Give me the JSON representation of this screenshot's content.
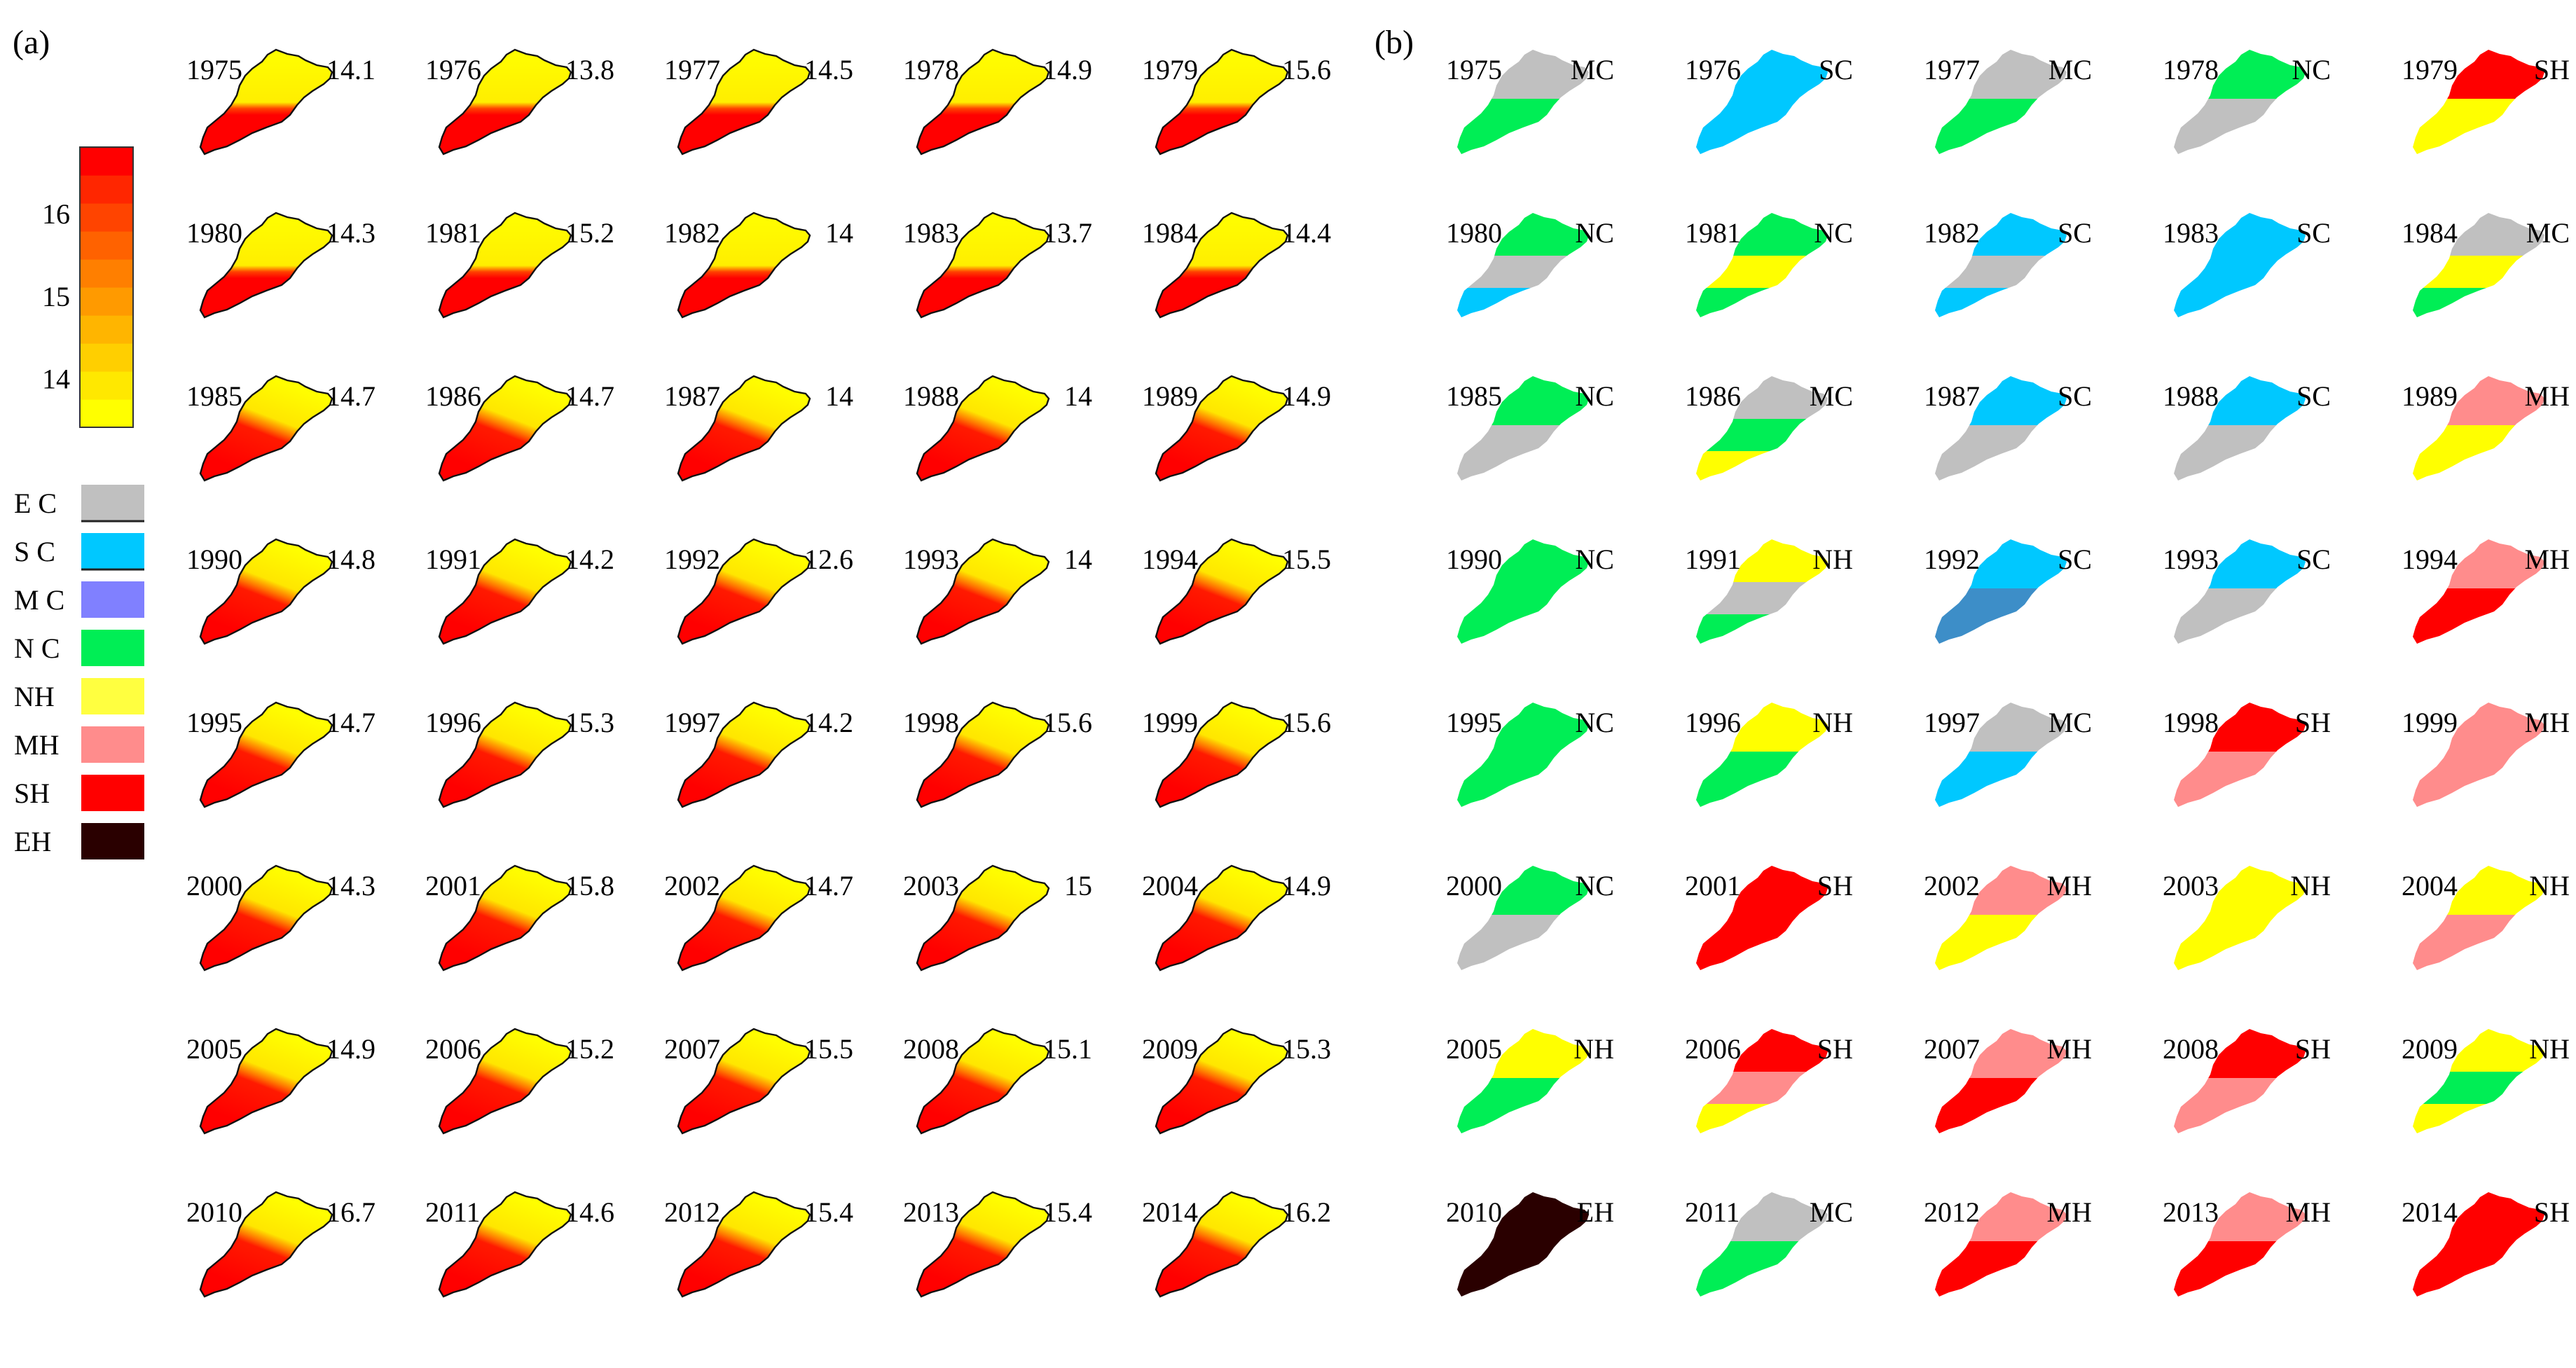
{
  "panels": {
    "a": {
      "label": "(a)"
    },
    "b": {
      "label": "(b)"
    }
  },
  "colorbar": {
    "tick_labels": [
      "16",
      "15",
      "14"
    ],
    "tick_values": [
      16,
      15,
      14
    ],
    "range": [
      13.4,
      16.8
    ],
    "colors": [
      "#ffff00",
      "#ffe800",
      "#ffcf00",
      "#ffb500",
      "#ff9a00",
      "#ff7f00",
      "#ff6200",
      "#ff4400",
      "#ff2600",
      "#ff0000"
    ]
  },
  "legend": [
    {
      "code": "EC",
      "label": "E C",
      "color": "#c0c0c0"
    },
    {
      "code": "SC",
      "label": "S C",
      "color": "#00c8ff"
    },
    {
      "code": "MC",
      "label": "M C",
      "color": "#8080ff"
    },
    {
      "code": "NC",
      "label": "N C",
      "color": "#00ee55"
    },
    {
      "code": "NH",
      "label": "NH",
      "color": "#ffff40"
    },
    {
      "code": "MH",
      "label": "MH",
      "color": "#ff8c8c"
    },
    {
      "code": "SH",
      "label": "SH",
      "color": "#ff0000"
    },
    {
      "code": "EH",
      "label": "EH",
      "color": "#2a0000"
    }
  ],
  "class_colors": {
    "EC": "#c0c0c0",
    "SC": "#00c8ff",
    "SCd": "#3d8ec8",
    "MC": "#8080ff",
    "NC": "#00ee55",
    "NH": "#ffff00",
    "MH": "#ff8c8c",
    "SH": "#ff0000",
    "EH": "#2a0000"
  },
  "panel_a_years": [
    {
      "year": "1975",
      "value": "14.1",
      "split": 0.54
    },
    {
      "year": "1976",
      "value": "13.8",
      "split": 0.54
    },
    {
      "year": "1977",
      "value": "14.5",
      "split": 0.54
    },
    {
      "year": "1978",
      "value": "14.9",
      "split": 0.54
    },
    {
      "year": "1979",
      "value": "15.6",
      "split": 0.54
    },
    {
      "year": "1980",
      "value": "14.3",
      "split": 0.58
    },
    {
      "year": "1981",
      "value": "15.2",
      "split": 0.58
    },
    {
      "year": "1982",
      "value": "14",
      "split": 0.58
    },
    {
      "year": "1983",
      "value": "13.7",
      "split": 0.58
    },
    {
      "year": "1984",
      "value": "14.4",
      "split": 0.58
    },
    {
      "year": "1985",
      "value": "14.7",
      "split": 0.45
    },
    {
      "year": "1986",
      "value": "14.7",
      "split": 0.45
    },
    {
      "year": "1987",
      "value": "14",
      "split": 0.45
    },
    {
      "year": "1988",
      "value": "14",
      "split": 0.45
    },
    {
      "year": "1989",
      "value": "14.9",
      "split": 0.45
    },
    {
      "year": "1990",
      "value": "14.8",
      "split": 0.45
    },
    {
      "year": "1991",
      "value": "14.2",
      "split": 0.45
    },
    {
      "year": "1992",
      "value": "12.6",
      "split": 0.45
    },
    {
      "year": "1993",
      "value": "14",
      "split": 0.45
    },
    {
      "year": "1994",
      "value": "15.5",
      "split": 0.45
    },
    {
      "year": "1995",
      "value": "14.7",
      "split": 0.45
    },
    {
      "year": "1996",
      "value": "15.3",
      "split": 0.45
    },
    {
      "year": "1997",
      "value": "14.2",
      "split": 0.45
    },
    {
      "year": "1998",
      "value": "15.6",
      "split": 0.45
    },
    {
      "year": "1999",
      "value": "15.6",
      "split": 0.45
    },
    {
      "year": "2000",
      "value": "14.3",
      "split": 0.45
    },
    {
      "year": "2001",
      "value": "15.8",
      "split": 0.45
    },
    {
      "year": "2002",
      "value": "14.7",
      "split": 0.45
    },
    {
      "year": "2003",
      "value": "15",
      "split": 0.45
    },
    {
      "year": "2004",
      "value": "14.9",
      "split": 0.45
    },
    {
      "year": "2005",
      "value": "14.9",
      "split": 0.45
    },
    {
      "year": "2006",
      "value": "15.2",
      "split": 0.45
    },
    {
      "year": "2007",
      "value": "15.5",
      "split": 0.45
    },
    {
      "year": "2008",
      "value": "15.1",
      "split": 0.45
    },
    {
      "year": "2009",
      "value": "15.3",
      "split": 0.45
    },
    {
      "year": "2010",
      "value": "16.7",
      "split": 0.45
    },
    {
      "year": "2011",
      "value": "14.6",
      "split": 0.45
    },
    {
      "year": "2012",
      "value": "15.4",
      "split": 0.45
    },
    {
      "year": "2013",
      "value": "15.4",
      "split": 0.45
    },
    {
      "year": "2014",
      "value": "16.2",
      "split": 0.45
    }
  ],
  "panel_b_years": [
    {
      "year": "1975",
      "cls": "MC",
      "zones": [
        "EC",
        "NC"
      ]
    },
    {
      "year": "1976",
      "cls": "SC",
      "zones": [
        "SC"
      ]
    },
    {
      "year": "1977",
      "cls": "MC",
      "zones": [
        "EC",
        "NC"
      ]
    },
    {
      "year": "1978",
      "cls": "NC",
      "zones": [
        "NC",
        "EC"
      ]
    },
    {
      "year": "1979",
      "cls": "SH",
      "zones": [
        "SH",
        "NH"
      ]
    },
    {
      "year": "1980",
      "cls": "NC",
      "zones": [
        "NC",
        "EC",
        "SC"
      ]
    },
    {
      "year": "1981",
      "cls": "NC",
      "zones": [
        "NC",
        "NH",
        "NC"
      ]
    },
    {
      "year": "1982",
      "cls": "SC",
      "zones": [
        "SC",
        "EC",
        "SC"
      ]
    },
    {
      "year": "1983",
      "cls": "SC",
      "zones": [
        "SC"
      ]
    },
    {
      "year": "1984",
      "cls": "MC",
      "zones": [
        "EC",
        "NH",
        "NC"
      ]
    },
    {
      "year": "1985",
      "cls": "NC",
      "zones": [
        "NC",
        "EC"
      ]
    },
    {
      "year": "1986",
      "cls": "MC",
      "zones": [
        "EC",
        "NC",
        "NH"
      ]
    },
    {
      "year": "1987",
      "cls": "SC",
      "zones": [
        "SC",
        "EC"
      ]
    },
    {
      "year": "1988",
      "cls": "SC",
      "zones": [
        "SC",
        "EC"
      ]
    },
    {
      "year": "1989",
      "cls": "MH",
      "zones": [
        "MH",
        "NH"
      ]
    },
    {
      "year": "1990",
      "cls": "NC",
      "zones": [
        "NC"
      ]
    },
    {
      "year": "1991",
      "cls": "NH",
      "zones": [
        "NH",
        "EC",
        "NC"
      ]
    },
    {
      "year": "1992",
      "cls": "SC",
      "zones": [
        "SC",
        "SCd"
      ]
    },
    {
      "year": "1993",
      "cls": "SC",
      "zones": [
        "SC",
        "EC"
      ]
    },
    {
      "year": "1994",
      "cls": "MH",
      "zones": [
        "MH",
        "SH"
      ]
    },
    {
      "year": "1995",
      "cls": "NC",
      "zones": [
        "NC"
      ]
    },
    {
      "year": "1996",
      "cls": "NH",
      "zones": [
        "NH",
        "NC"
      ]
    },
    {
      "year": "1997",
      "cls": "MC",
      "zones": [
        "EC",
        "SC"
      ]
    },
    {
      "year": "1998",
      "cls": "SH",
      "zones": [
        "SH",
        "MH"
      ]
    },
    {
      "year": "1999",
      "cls": "MH",
      "zones": [
        "MH"
      ]
    },
    {
      "year": "2000",
      "cls": "NC",
      "zones": [
        "NC",
        "EC"
      ]
    },
    {
      "year": "2001",
      "cls": "SH",
      "zones": [
        "SH"
      ]
    },
    {
      "year": "2002",
      "cls": "MH",
      "zones": [
        "MH",
        "NH"
      ]
    },
    {
      "year": "2003",
      "cls": "NH",
      "zones": [
        "NH"
      ]
    },
    {
      "year": "2004",
      "cls": "NH",
      "zones": [
        "NH",
        "MH"
      ]
    },
    {
      "year": "2005",
      "cls": "NH",
      "zones": [
        "NH",
        "NC"
      ]
    },
    {
      "year": "2006",
      "cls": "SH",
      "zones": [
        "SH",
        "MH",
        "NH"
      ]
    },
    {
      "year": "2007",
      "cls": "MH",
      "zones": [
        "MH",
        "SH"
      ]
    },
    {
      "year": "2008",
      "cls": "SH",
      "zones": [
        "SH",
        "MH"
      ]
    },
    {
      "year": "2009",
      "cls": "NH",
      "zones": [
        "NH",
        "NC",
        "NH"
      ]
    },
    {
      "year": "2010",
      "cls": "EH",
      "zones": [
        "EH"
      ]
    },
    {
      "year": "2011",
      "cls": "MC",
      "zones": [
        "EC",
        "NC"
      ]
    },
    {
      "year": "2012",
      "cls": "MH",
      "zones": [
        "MH",
        "SH"
      ]
    },
    {
      "year": "2013",
      "cls": "MH",
      "zones": [
        "MH",
        "SH"
      ]
    },
    {
      "year": "2014",
      "cls": "SH",
      "zones": [
        "SH"
      ]
    }
  ]
}
